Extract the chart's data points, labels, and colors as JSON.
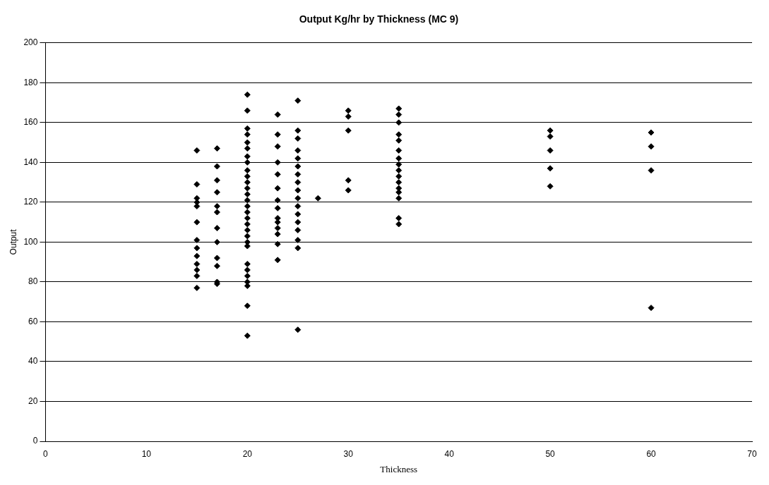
{
  "chart_data": {
    "type": "scatter",
    "title": "Output Kg/hr by Thickness (MC 9)",
    "xlabel": "Thickness",
    "ylabel": "Output",
    "x": [
      15,
      15,
      15,
      15,
      15,
      15,
      15,
      15,
      15,
      15,
      15,
      15,
      15,
      17,
      17,
      17,
      17,
      17,
      17,
      17,
      17,
      17,
      17,
      17,
      17,
      20,
      20,
      20,
      20,
      20,
      20,
      20,
      20,
      20,
      20,
      20,
      20,
      20,
      20,
      20,
      20,
      20,
      20,
      20,
      20,
      20,
      20,
      20,
      20,
      20,
      20,
      20,
      20,
      20,
      23,
      23,
      23,
      23,
      23,
      23,
      23,
      23,
      23,
      23,
      23,
      23,
      23,
      23,
      25,
      25,
      25,
      25,
      25,
      25,
      25,
      25,
      25,
      25,
      25,
      25,
      25,
      25,
      25,
      25,
      25,
      27,
      30,
      30,
      30,
      30,
      30,
      35,
      35,
      35,
      35,
      35,
      35,
      35,
      35,
      35,
      35,
      35,
      35,
      35,
      35,
      35,
      35,
      50,
      50,
      50,
      50,
      50,
      60,
      60,
      60,
      60
    ],
    "values": [
      146,
      129,
      122,
      120,
      118,
      110,
      101,
      97,
      93,
      89,
      86,
      83,
      77,
      147,
      138,
      131,
      125,
      118,
      115,
      107,
      100,
      92,
      88,
      80,
      79,
      174,
      166,
      157,
      154,
      150,
      147,
      143,
      140,
      136,
      133,
      130,
      127,
      124,
      121,
      118,
      115,
      112,
      109,
      106,
      103,
      100,
      98,
      89,
      86,
      83,
      80,
      78,
      68,
      53,
      164,
      154,
      148,
      140,
      134,
      127,
      121,
      117,
      112,
      110,
      107,
      104,
      99,
      91,
      171,
      156,
      152,
      146,
      142,
      138,
      134,
      130,
      126,
      122,
      118,
      114,
      110,
      106,
      101,
      97,
      56,
      122,
      166,
      163,
      156,
      131,
      126,
      167,
      164,
      160,
      154,
      151,
      146,
      142,
      139,
      136,
      133,
      130,
      127,
      125,
      122,
      112,
      109,
      156,
      153,
      146,
      137,
      128,
      155,
      148,
      136,
      67
    ],
    "color": "#000000",
    "marker": "diamond",
    "grid": "y",
    "xlim": [
      0,
      70
    ],
    "xticks": [
      0,
      10,
      20,
      30,
      40,
      50,
      60,
      70
    ],
    "ylim": [
      0,
      200
    ],
    "yticks": [
      0,
      20,
      40,
      60,
      80,
      100,
      120,
      140,
      160,
      180,
      200
    ]
  }
}
